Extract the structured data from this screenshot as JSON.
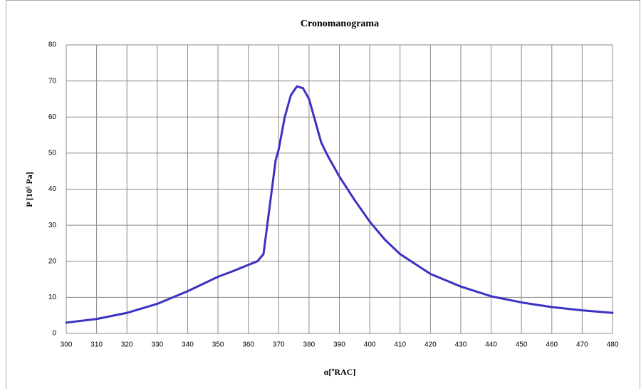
{
  "chart_data": {
    "type": "line",
    "title": "Cronomanograma",
    "x_label": "α[ºRAC]",
    "y_label": "P [10⁵ Pa]",
    "x": [
      300,
      310,
      320,
      330,
      340,
      350,
      355,
      360,
      363,
      365,
      367,
      369,
      370,
      372,
      374,
      376,
      378,
      380,
      382,
      384,
      386,
      388,
      390,
      395,
      400,
      405,
      410,
      420,
      430,
      440,
      450,
      460,
      470,
      480
    ],
    "series": [
      {
        "name": "P",
        "color": "#3b32c2",
        "values": [
          3,
          4,
          5.7,
          8.2,
          11.7,
          15.7,
          17.3,
          19,
          20,
          22,
          35,
          48,
          51,
          60,
          66,
          68.5,
          68,
          65,
          59,
          53,
          49.5,
          46.5,
          43.5,
          37,
          31,
          26,
          22,
          16.5,
          13,
          10.3,
          8.6,
          7.3,
          6.4,
          5.7
        ]
      }
    ],
    "xlim": [
      300,
      480
    ],
    "ylim": [
      0,
      80
    ],
    "xticks": [
      300,
      310,
      320,
      330,
      340,
      350,
      360,
      370,
      380,
      390,
      400,
      410,
      420,
      430,
      440,
      450,
      460,
      470,
      480
    ],
    "yticks": [
      0,
      10,
      20,
      30,
      40,
      50,
      60,
      70,
      80
    ],
    "grid": true
  }
}
